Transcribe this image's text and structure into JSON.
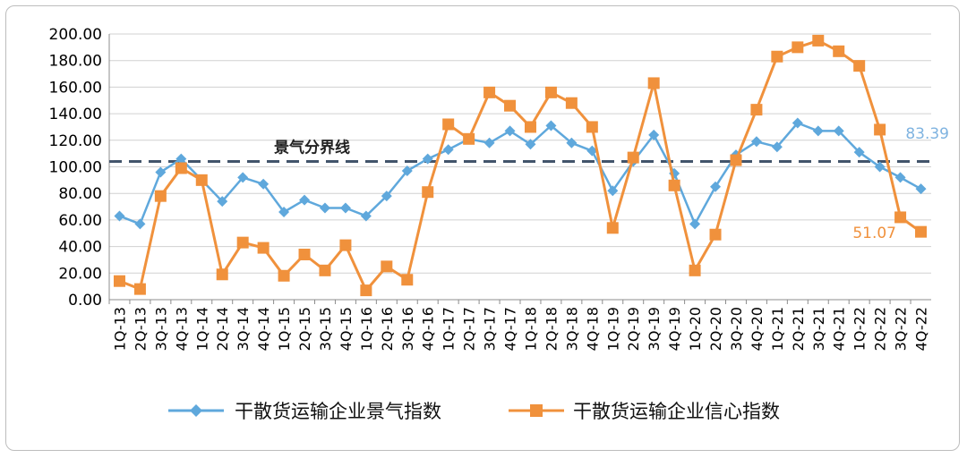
{
  "chart_data": {
    "type": "line",
    "title": "",
    "xlabel": "",
    "ylabel": "",
    "ylim": [
      0,
      200
    ],
    "y_ticks": [
      "0.00",
      "20.00",
      "40.00",
      "60.00",
      "80.00",
      "100.00",
      "120.00",
      "140.00",
      "160.00",
      "180.00",
      "200.00"
    ],
    "grid": "horizontal",
    "legend_position": "bottom",
    "categories": [
      "1Q-13",
      "2Q-13",
      "3Q-13",
      "4Q-13",
      "1Q-14",
      "2Q-14",
      "3Q-14",
      "4Q-14",
      "1Q-15",
      "2Q-15",
      "3Q-15",
      "4Q-15",
      "1Q-16",
      "2Q-16",
      "3Q-16",
      "4Q-16",
      "1Q-17",
      "2Q-17",
      "3Q-17",
      "4Q-17",
      "1Q-18",
      "2Q-18",
      "3Q-18",
      "4Q-18",
      "1Q-19",
      "2Q-19",
      "3Q-19",
      "4Q-19",
      "1Q-20",
      "2Q-20",
      "3Q-20",
      "4Q-20",
      "1Q-21",
      "2Q-21",
      "3Q-21",
      "4Q-21",
      "1Q-22",
      "2Q-22",
      "3Q-22",
      "4Q-22"
    ],
    "series": [
      {
        "name": "干散货运输企业景气指数",
        "color": "#5fa8dc",
        "marker": "diamond",
        "values": [
          63,
          57,
          96,
          106,
          90,
          74,
          92,
          87,
          66,
          75,
          69,
          69,
          63,
          78,
          97,
          106,
          113,
          121,
          118,
          127,
          117,
          131,
          118,
          112,
          82,
          104,
          124,
          95,
          57,
          85,
          109,
          119,
          115,
          133,
          127,
          127,
          111,
          100,
          92,
          83.39
        ]
      },
      {
        "name": "干散货运输企业信心指数",
        "color": "#f0913c",
        "marker": "square",
        "values": [
          14,
          8,
          78,
          99,
          90,
          19,
          43,
          39,
          18,
          34,
          22,
          41,
          7,
          25,
          15,
          81,
          132,
          121,
          156,
          146,
          130,
          156,
          148,
          130,
          54,
          107,
          163,
          86,
          22,
          49,
          105,
          143,
          183,
          190,
          195,
          187,
          176,
          128,
          62,
          51.07
        ]
      }
    ],
    "reference_line": {
      "label": "景气分界线",
      "value": 104,
      "color": "#42546b"
    },
    "annotations": [
      {
        "text": "83.39",
        "series": 0,
        "index": 39,
        "color": "#7fb3e0"
      },
      {
        "text": "51.07",
        "series": 1,
        "index": 39,
        "color": "#f0913c"
      }
    ]
  }
}
